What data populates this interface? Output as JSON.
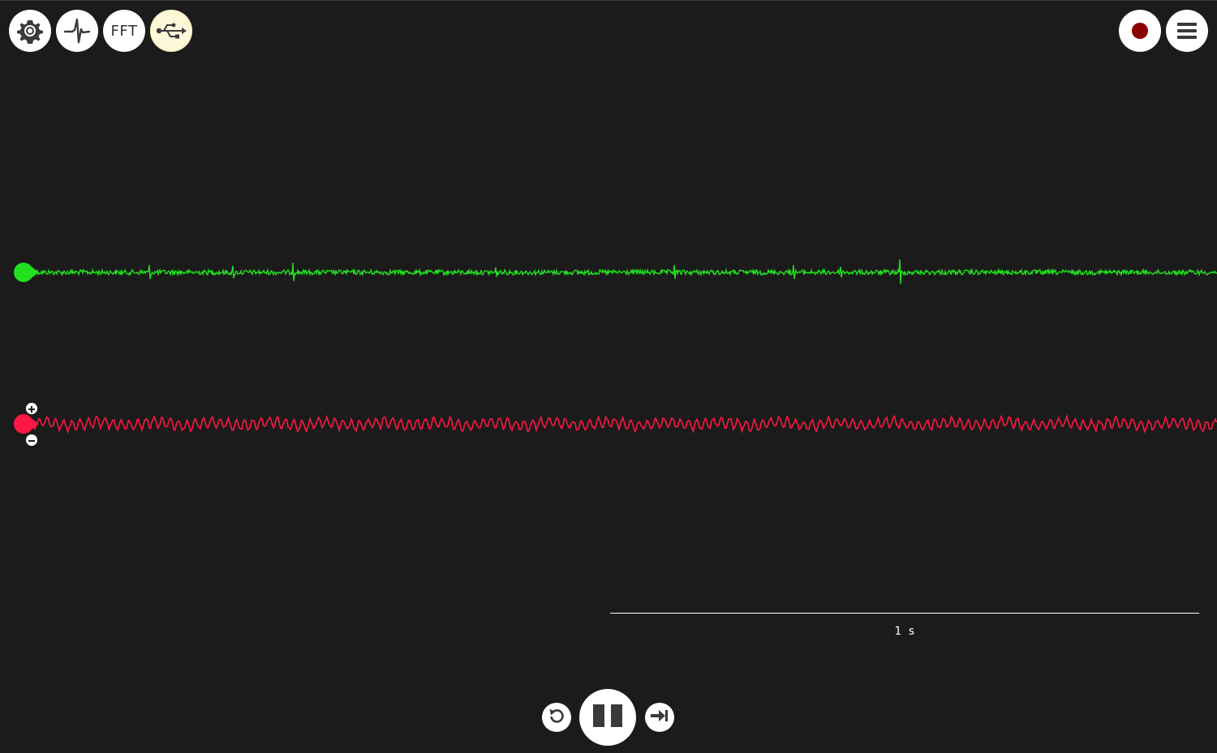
{
  "toolbar_left": [
    {
      "icon": "gear-icon"
    },
    {
      "icon": "spike-waveform-icon"
    },
    {
      "icon": "fft-icon",
      "label": "FFT"
    },
    {
      "icon": "usb-icon"
    }
  ],
  "toolbar_right": [
    {
      "icon": "record-icon"
    },
    {
      "icon": "menu-icon"
    }
  ],
  "channels": [
    {
      "color": "#22e01f"
    },
    {
      "color": "#ff1744"
    }
  ],
  "timescale": {
    "label": "1 s"
  },
  "playback": {
    "controls": [
      "rewind-icon",
      "pause-icon",
      "skip-to-end-icon"
    ]
  },
  "colors": {
    "background": "#1b1b1b",
    "record_dot": "#8b0000"
  }
}
